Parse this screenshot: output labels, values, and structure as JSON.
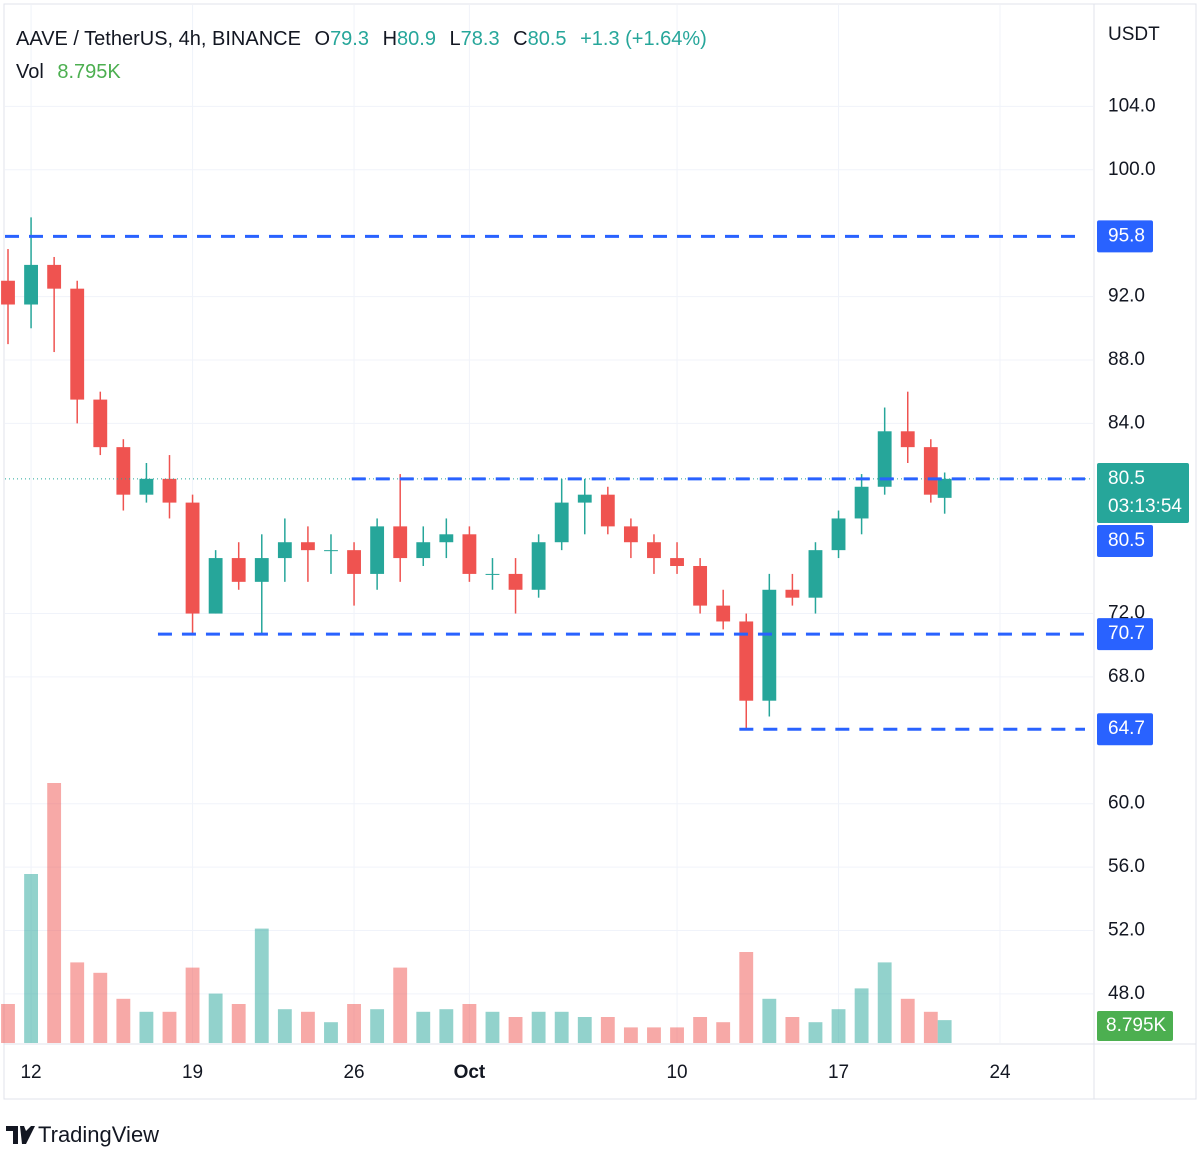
{
  "chart_data": {
    "type": "candlestick",
    "title": "AAVE / TetherUS, 4h, BINANCE",
    "ohlc_header": {
      "o_label": "O",
      "o": 79.3,
      "h_label": "H",
      "h": 80.9,
      "l_label": "L",
      "l": 78.3,
      "c_label": "C",
      "c": 80.5,
      "change": "+1.3 (+1.64%)"
    },
    "volume_header": {
      "label": "Vol",
      "value": "8.795K"
    },
    "axis_unit": "USDT",
    "x": [
      -1,
      0,
      1,
      2,
      3,
      4,
      5,
      6,
      7,
      8,
      9,
      10,
      11,
      12,
      13,
      14,
      15,
      16,
      17,
      18,
      19,
      20,
      21,
      22,
      23,
      24,
      25,
      26,
      27,
      28,
      29,
      30,
      31,
      32,
      33,
      34,
      35,
      36,
      37,
      38,
      39,
      39.6
    ],
    "open": [
      93,
      91.5,
      94,
      92.5,
      85.5,
      82.5,
      79.5,
      80.5,
      79,
      72,
      75.5,
      74,
      75.5,
      76.5,
      76,
      76,
      74.5,
      77.5,
      75.5,
      76.5,
      77,
      74.5,
      74.5,
      73.5,
      76.5,
      79,
      79.5,
      77.5,
      76.5,
      75.5,
      75,
      72.5,
      71.5,
      66.5,
      73.5,
      73,
      76,
      78,
      80,
      83.5,
      82.5,
      79.3
    ],
    "high": [
      95,
      97,
      94.5,
      93,
      86,
      83,
      81.5,
      82,
      79.5,
      76,
      76.5,
      77,
      78,
      77.5,
      77,
      76.5,
      78,
      80.8,
      77.5,
      78,
      77.5,
      75.5,
      75.5,
      77,
      80.5,
      80.5,
      80,
      78,
      77,
      76.5,
      75.5,
      73.5,
      72,
      74.5,
      74.5,
      76.5,
      78.5,
      80.8,
      85,
      86,
      83,
      80.9
    ],
    "low": [
      89,
      90,
      88.5,
      84,
      82,
      78.5,
      79,
      78,
      70.7,
      72,
      73.5,
      70.7,
      74,
      74,
      74.5,
      72.5,
      73.5,
      74,
      75,
      75.5,
      74,
      73.5,
      72,
      73,
      76,
      77,
      77,
      75.5,
      74.5,
      74.5,
      72,
      71,
      64.7,
      65.5,
      72.5,
      72,
      75.5,
      77,
      79.5,
      81.5,
      79,
      78.3
    ],
    "close": [
      91.5,
      94,
      92.5,
      85.5,
      82.5,
      79.5,
      80.5,
      79,
      72,
      75.5,
      74,
      75.5,
      76.5,
      76,
      76,
      74.5,
      77.5,
      75.5,
      76.5,
      77,
      74.5,
      74.5,
      73.5,
      76.5,
      79,
      79.5,
      77.5,
      76.5,
      75.5,
      75,
      72.5,
      71.5,
      66.5,
      73.5,
      73,
      76,
      78,
      80,
      83.5,
      82.5,
      79.5,
      80.5
    ],
    "volume": [
      15,
      65,
      100,
      31,
      27,
      17,
      12,
      12,
      29,
      19,
      15,
      44,
      13,
      12,
      8,
      15,
      13,
      29,
      12,
      13,
      15,
      12,
      10,
      12,
      12,
      10,
      10,
      6,
      6,
      6,
      10,
      8,
      35,
      17,
      10,
      8,
      13,
      21,
      31,
      17,
      12,
      8.795
    ],
    "up_color": "#26a69a",
    "down_color": "#ef5350",
    "xlim": [
      -1.13,
      46.03
    ],
    "xticks": [
      {
        "value": 0,
        "label": "12"
      },
      {
        "value": 7,
        "label": "19"
      },
      {
        "value": 14,
        "label": "26"
      },
      {
        "value": 19,
        "label": "Oct"
      },
      {
        "value": 28,
        "label": "10"
      },
      {
        "value": 35,
        "label": "17"
      },
      {
        "value": 42,
        "label": "24"
      }
    ],
    "ylim": [
      44.9,
      110.4
    ],
    "yticks": [
      {
        "value": 104,
        "label": "104.0"
      },
      {
        "value": 100,
        "label": "100.0"
      },
      {
        "value": 92,
        "label": "92.0"
      },
      {
        "value": 88,
        "label": "88.0"
      },
      {
        "value": 84,
        "label": "84.0"
      },
      {
        "value": 72,
        "label": "72.0"
      },
      {
        "value": 68,
        "label": "68.0"
      },
      {
        "value": 60,
        "label": "60.0"
      },
      {
        "value": 56,
        "label": "56.0"
      },
      {
        "value": 52,
        "label": "52.0"
      },
      {
        "value": 48,
        "label": "48.0"
      }
    ],
    "levels": [
      {
        "value": 95.8,
        "from": -1.13
      },
      {
        "value": 80.5,
        "from": 13.9
      },
      {
        "value": 70.7,
        "from": 5.5
      },
      {
        "value": 64.7,
        "from": 30.7
      }
    ],
    "level_color": "#2962ff",
    "last_price": {
      "value": 80.5,
      "countdown": "03:13:54"
    },
    "grid": true
  },
  "footer": {
    "brand": "TradingView"
  }
}
